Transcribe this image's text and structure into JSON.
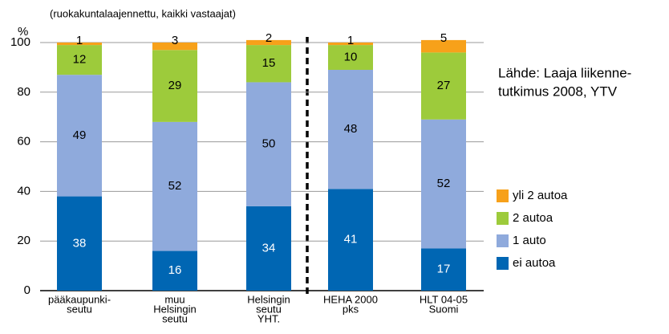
{
  "chart_data": {
    "type": "stacked_bar",
    "subtitle": "(ruokakuntalaajennettu, kaikki vastaajat)",
    "y_label": "%",
    "source": [
      "Lähde: Laaja liikenne-",
      "tutkimus 2008, YTV"
    ],
    "categories": [
      [
        "pääkaupunki-",
        "seutu"
      ],
      [
        "muu",
        "Helsingin",
        "seutu"
      ],
      [
        "Helsingin",
        "seutu",
        "YHT."
      ],
      [
        "HEHA 2000",
        "pks"
      ],
      [
        "HLT 04-05",
        "Suomi"
      ]
    ],
    "series": [
      {
        "name": "ei autoa",
        "color": "#0066b3",
        "label_color": "#ffffff",
        "values": [
          38,
          16,
          34,
          41,
          17
        ]
      },
      {
        "name": "1 auto",
        "color": "#8faadc",
        "label_color": "#000000",
        "values": [
          49,
          52,
          50,
          48,
          52
        ]
      },
      {
        "name": "2 autoa",
        "color": "#9dcb3b",
        "label_color": "#000000",
        "values": [
          12,
          29,
          15,
          10,
          27
        ]
      },
      {
        "name": "yli 2 autoa",
        "color": "#f7a11a",
        "label_color": "#000000",
        "values": [
          1,
          3,
          2,
          1,
          5
        ]
      }
    ],
    "ylim": [
      0,
      100
    ],
    "yticks": [
      0,
      20,
      40,
      60,
      80,
      100
    ],
    "grid": true
  }
}
